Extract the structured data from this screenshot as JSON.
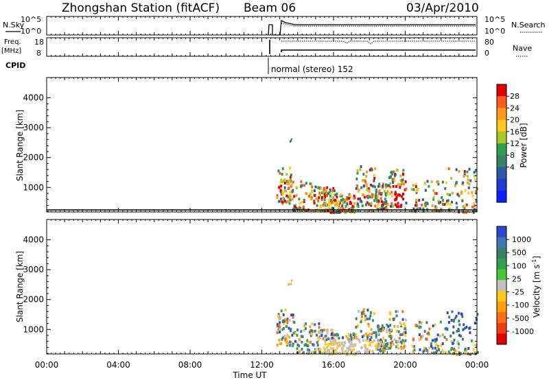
{
  "header": {
    "station": "Zhongshan Station (fitACF)",
    "beam": "Beam 06",
    "date": "03/Apr/2010"
  },
  "top_panels": {
    "nsky_label": "N.Sky",
    "nsky_ticks": [
      "10^5",
      "10^0"
    ],
    "nsearch_label": "N.Search",
    "nsearch_ticks": [
      "10^5",
      "10^0"
    ],
    "freq_label": "Freq.",
    "freq_unit": "[MHz]",
    "freq_ticks": [
      "18",
      "8"
    ],
    "nave_label": "Nave",
    "nave_ticks": [
      "80",
      "0"
    ],
    "cpid_label": "CPID",
    "cpid_text": "normal (stereo) 152"
  },
  "chart_data": [
    {
      "type": "heatmap",
      "name": "power-panel",
      "ylabel": "Slant Range [km]",
      "yticks": [
        "4000",
        "3000",
        "2000",
        "1000"
      ],
      "ylim": [
        180,
        4680
      ],
      "xlim_hours": [
        0,
        24
      ],
      "colorbar": {
        "label": "Power [dB]",
        "ticks": [
          "28",
          "24",
          "20",
          "16",
          "12",
          "8",
          "4"
        ],
        "colors": [
          "#e00000",
          "#ff5a1e",
          "#ff9a1e",
          "#ffc81e",
          "#a8c828",
          "#2fa04e",
          "#3c8068",
          "#2d5aa0",
          "#1e3cd2",
          "#0a1eff"
        ]
      },
      "data_extent_hours": [
        12.7,
        24
      ],
      "ground_scatter": false
    },
    {
      "type": "heatmap",
      "name": "velocity-panel",
      "ylabel": "Slant Range [km]",
      "yticks": [
        "4000",
        "3000",
        "2000",
        "1000"
      ],
      "ylim": [
        180,
        4680
      ],
      "xlim_hours": [
        0,
        24
      ],
      "colorbar": {
        "label": "Velocity [m s",
        "label_sup": "-1",
        "label_end": "]",
        "ticks": [
          "1000",
          "500",
          "100",
          "25",
          "-25",
          "-100",
          "-500",
          "-1000"
        ],
        "colors": [
          "#2a46d2",
          "#3c78b4",
          "#3c8068",
          "#32a050",
          "#46c832",
          "#c0c0c0",
          "#ffc81e",
          "#ffa00a",
          "#ff6e14",
          "#f03c14",
          "#e00000"
        ]
      },
      "data_extent_hours": [
        12.7,
        24
      ],
      "ground_scatter": true
    }
  ],
  "xaxis": {
    "label": "Time UT",
    "ticks": [
      "00:00",
      "04:00",
      "08:00",
      "12:00",
      "16:00",
      "20:00",
      "00:00"
    ]
  }
}
